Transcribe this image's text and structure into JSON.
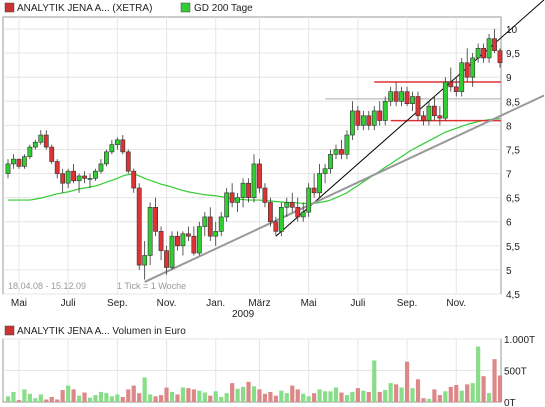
{
  "chart_data": [
    {
      "type": "candlestick",
      "legend": [
        {
          "label": "ANALYTIK JENA A... (XETRA)",
          "color": "#cc3333"
        },
        {
          "label": "GD 200 Tage",
          "color": "#33cc33"
        }
      ],
      "date_range_label": "18.04.08 - 15.12.09",
      "tick_label": "1 Tick = 1 Woche",
      "x_tick_labels": [
        "Mai",
        "Juli",
        "Sep.",
        "Nov.",
        "Jan.",
        "März",
        "Mai",
        "Juli",
        "Sep.",
        "Nov."
      ],
      "year_label": "2009",
      "y_tick_labels": [
        "10",
        "9,5",
        "9",
        "8,5",
        "8",
        "7,5",
        "7",
        "6,5",
        "6",
        "5,5",
        "5",
        "4,5"
      ],
      "ylim": [
        4.5,
        10.25
      ],
      "candles": [
        [
          7.0,
          7.3,
          6.9,
          7.2
        ],
        [
          7.2,
          7.4,
          7.1,
          7.3
        ],
        [
          7.3,
          7.3,
          7.1,
          7.15
        ],
        [
          7.15,
          7.4,
          7.1,
          7.35
        ],
        [
          7.35,
          7.6,
          7.3,
          7.55
        ],
        [
          7.55,
          7.7,
          7.5,
          7.65
        ],
        [
          7.65,
          7.9,
          7.6,
          7.8
        ],
        [
          7.8,
          7.9,
          7.5,
          7.55
        ],
        [
          7.55,
          7.6,
          7.2,
          7.25
        ],
        [
          7.25,
          7.3,
          6.9,
          7.0
        ],
        [
          7.0,
          7.1,
          6.6,
          6.8
        ],
        [
          6.8,
          7.1,
          6.7,
          7.05
        ],
        [
          7.05,
          7.2,
          6.8,
          6.85
        ],
        [
          6.85,
          7.0,
          6.6,
          6.95
        ],
        [
          6.95,
          7.05,
          6.8,
          6.9
        ],
        [
          6.9,
          7.0,
          6.7,
          6.9
        ],
        [
          6.9,
          7.1,
          6.85,
          7.05
        ],
        [
          7.05,
          7.3,
          7.0,
          7.2
        ],
        [
          7.2,
          7.5,
          7.15,
          7.45
        ],
        [
          7.45,
          7.7,
          7.4,
          7.6
        ],
        [
          7.6,
          7.75,
          7.5,
          7.7
        ],
        [
          7.7,
          7.8,
          7.4,
          7.45
        ],
        [
          7.45,
          7.5,
          7.0,
          7.05
        ],
        [
          7.05,
          7.1,
          6.6,
          6.7
        ],
        [
          6.7,
          6.8,
          5.0,
          5.1
        ],
        [
          5.1,
          5.6,
          4.8,
          5.3
        ],
        [
          5.3,
          6.4,
          5.1,
          6.3
        ],
        [
          6.3,
          6.5,
          5.7,
          5.8
        ],
        [
          5.8,
          5.9,
          5.2,
          5.4
        ],
        [
          5.4,
          5.5,
          4.9,
          5.05
        ],
        [
          5.05,
          5.8,
          5.0,
          5.7
        ],
        [
          5.7,
          5.8,
          5.4,
          5.5
        ],
        [
          5.5,
          5.8,
          5.3,
          5.75
        ],
        [
          5.75,
          5.9,
          5.6,
          5.7
        ],
        [
          5.7,
          5.9,
          5.3,
          5.35
        ],
        [
          5.35,
          6.0,
          5.3,
          5.9
        ],
        [
          5.9,
          6.2,
          5.7,
          6.1
        ],
        [
          6.1,
          6.3,
          5.6,
          5.7
        ],
        [
          5.7,
          6.0,
          5.5,
          5.8
        ],
        [
          5.8,
          6.2,
          5.7,
          6.1
        ],
        [
          6.1,
          6.7,
          6.0,
          6.6
        ],
        [
          6.6,
          6.8,
          6.3,
          6.4
        ],
        [
          6.4,
          6.6,
          6.2,
          6.5
        ],
        [
          6.5,
          6.9,
          6.3,
          6.8
        ],
        [
          6.8,
          6.9,
          6.4,
          6.5
        ],
        [
          6.5,
          7.4,
          6.4,
          7.2
        ],
        [
          7.2,
          7.3,
          6.6,
          6.7
        ],
        [
          6.7,
          6.8,
          6.3,
          6.4
        ],
        [
          6.4,
          6.5,
          5.9,
          6.0
        ],
        [
          6.0,
          6.1,
          5.7,
          5.8
        ],
        [
          5.8,
          6.4,
          5.7,
          6.3
        ],
        [
          6.3,
          6.5,
          6.1,
          6.4
        ],
        [
          6.4,
          6.6,
          6.2,
          6.3
        ],
        [
          6.3,
          6.5,
          6.0,
          6.1
        ],
        [
          6.1,
          6.4,
          6.0,
          6.2
        ],
        [
          6.2,
          6.8,
          6.1,
          6.7
        ],
        [
          6.7,
          7.0,
          6.5,
          6.6
        ],
        [
          6.6,
          7.2,
          6.5,
          7.0
        ],
        [
          7.0,
          7.2,
          6.8,
          7.1
        ],
        [
          7.1,
          7.5,
          7.0,
          7.4
        ],
        [
          7.4,
          7.6,
          7.3,
          7.5
        ],
        [
          7.5,
          7.7,
          7.3,
          7.4
        ],
        [
          7.4,
          7.9,
          7.3,
          7.8
        ],
        [
          7.8,
          8.5,
          7.7,
          8.3
        ],
        [
          8.3,
          8.4,
          7.9,
          8.0
        ],
        [
          8.0,
          8.3,
          7.9,
          8.2
        ],
        [
          8.2,
          8.3,
          7.9,
          8.0
        ],
        [
          8.0,
          8.4,
          7.9,
          8.3
        ],
        [
          8.3,
          8.5,
          8.0,
          8.1
        ],
        [
          8.1,
          8.6,
          8.0,
          8.5
        ],
        [
          8.5,
          8.8,
          8.4,
          8.7
        ],
        [
          8.7,
          8.9,
          8.4,
          8.5
        ],
        [
          8.5,
          8.8,
          8.4,
          8.7
        ],
        [
          8.7,
          8.8,
          8.4,
          8.45
        ],
        [
          8.45,
          8.7,
          8.3,
          8.6
        ],
        [
          8.6,
          8.7,
          8.1,
          8.2
        ],
        [
          8.2,
          8.3,
          8.0,
          8.1
        ],
        [
          8.1,
          8.5,
          8.0,
          8.4
        ],
        [
          8.4,
          8.6,
          8.1,
          8.2
        ],
        [
          8.2,
          8.4,
          8.0,
          8.15
        ],
        [
          8.15,
          9.0,
          8.1,
          8.9
        ],
        [
          8.9,
          9.2,
          8.7,
          8.8
        ],
        [
          8.8,
          9.0,
          8.6,
          8.7
        ],
        [
          8.7,
          9.4,
          8.6,
          9.3
        ],
        [
          9.3,
          9.6,
          8.9,
          9.0
        ],
        [
          9.0,
          9.5,
          8.8,
          9.4
        ],
        [
          9.4,
          9.7,
          9.3,
          9.6
        ],
        [
          9.6,
          9.7,
          9.3,
          9.4
        ],
        [
          9.4,
          9.9,
          9.3,
          9.8
        ],
        [
          9.8,
          10.0,
          9.5,
          9.55
        ],
        [
          9.55,
          9.6,
          9.2,
          9.3
        ]
      ],
      "ma200": [
        6.45,
        6.45,
        6.45,
        6.45,
        6.45,
        6.47,
        6.49,
        6.52,
        6.55,
        6.58,
        6.6,
        6.62,
        6.65,
        6.68,
        6.7,
        6.72,
        6.74,
        6.78,
        6.82,
        6.86,
        6.9,
        6.95,
        6.98,
        7.0,
        6.95,
        6.9,
        6.86,
        6.82,
        6.78,
        6.75,
        6.72,
        6.68,
        6.65,
        6.62,
        6.6,
        6.58,
        6.56,
        6.55,
        6.54,
        6.52,
        6.5,
        6.48,
        6.47,
        6.46,
        6.45,
        6.45,
        6.45,
        6.44,
        6.43,
        6.42,
        6.41,
        6.4,
        6.4,
        6.39,
        6.38,
        6.38,
        6.38,
        6.4,
        6.42,
        6.45,
        6.5,
        6.55,
        6.6,
        6.68,
        6.75,
        6.83,
        6.9,
        6.98,
        7.05,
        7.13,
        7.2,
        7.28,
        7.35,
        7.43,
        7.5,
        7.56,
        7.62,
        7.68,
        7.74,
        7.8,
        7.86,
        7.9,
        7.94,
        7.98,
        8.02,
        8.05,
        8.08,
        8.1,
        8.12,
        8.13,
        8.14
      ],
      "horizontal_levels": [
        {
          "y": 8.9,
          "color": "#dd3333"
        },
        {
          "y": 8.1,
          "color": "#dd3333"
        },
        {
          "y": 8.55,
          "color": "#aaaaaa"
        }
      ],
      "trendlines": [
        {
          "from": [
            49,
            5.7
          ],
          "to": [
            92,
            10.0
          ],
          "color": "#000000"
        },
        {
          "from": [
            25,
            4.75
          ],
          "to": [
            92,
            8.3
          ],
          "color": "#999999"
        }
      ]
    },
    {
      "type": "bar",
      "legend": [
        {
          "label": "ANALYTIK JENA A... Volumen in Euro",
          "color": "#cc3333"
        }
      ],
      "y_tick_labels": [
        "1.000T",
        "500T",
        "0T"
      ],
      "ylim": [
        0,
        1000
      ],
      "volumes": [
        90,
        160,
        30,
        200,
        130,
        60,
        120,
        40,
        80,
        40,
        190,
        260,
        200,
        100,
        150,
        70,
        110,
        160,
        140,
        90,
        120,
        80,
        200,
        260,
        140,
        390,
        120,
        90,
        110,
        230,
        160,
        120,
        230,
        220,
        200,
        180,
        150,
        100,
        170,
        80,
        140,
        300,
        210,
        240,
        320,
        250,
        200,
        130,
        160,
        100,
        180,
        140,
        260,
        200,
        130,
        90,
        140,
        200,
        170,
        170,
        230,
        150,
        110,
        160,
        220,
        180,
        160,
        660,
        160,
        190,
        300,
        280,
        230,
        640,
        220,
        360,
        60,
        50,
        200,
        110,
        170,
        240,
        270,
        180,
        280,
        300,
        880,
        410,
        140,
        680,
        420
      ]
    }
  ]
}
